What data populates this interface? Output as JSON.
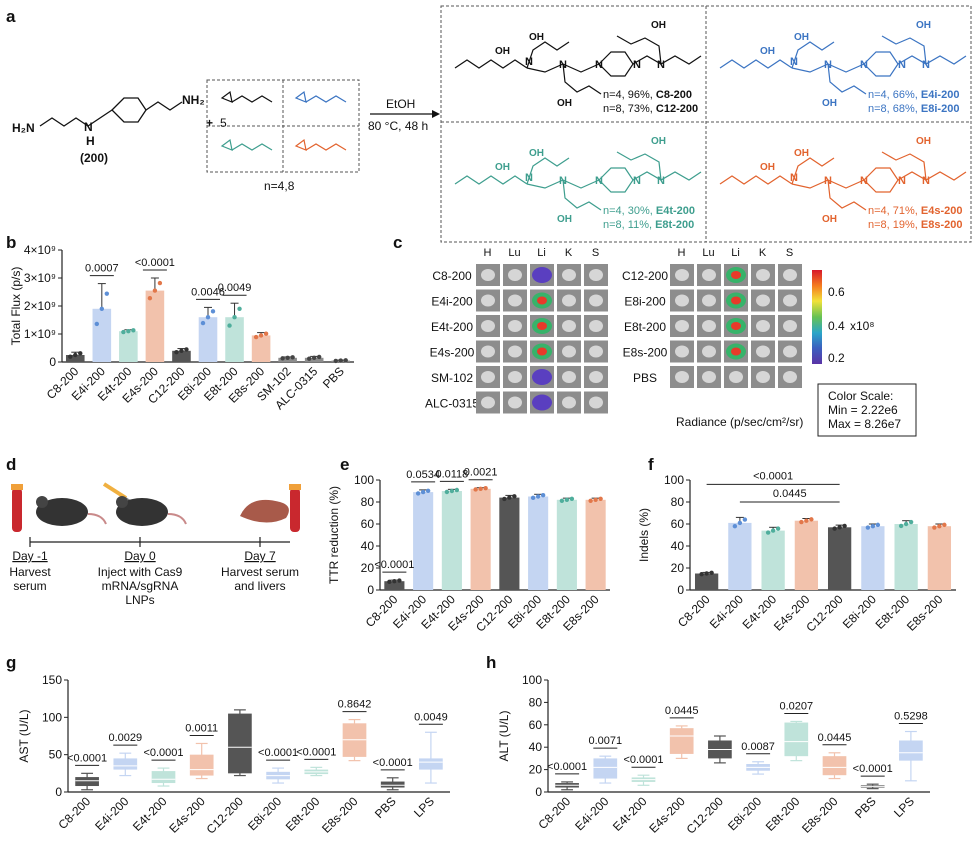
{
  "panel_labels": {
    "a": "a",
    "b": "b",
    "c": "c",
    "d": "d",
    "e": "e",
    "f": "f",
    "g": "g",
    "h": "h"
  },
  "scheme": {
    "amine_label": "(200)",
    "amine_groups": [
      "H₂N",
      "N",
      "NH₂",
      "H"
    ],
    "plus": "+",
    "equiv": "5",
    "n_values": "n=4,8",
    "cond_reagent": "EtOH",
    "cond_temp_time": "80 °C, 48 h",
    "products": [
      {
        "line1": "n=4, 96%,",
        "name1": "C8-200",
        "line2": "n=8, 73%,",
        "name2": "C12-200",
        "color": "#111111"
      },
      {
        "line1": "n=4, 66%,",
        "name1": "E4i-200",
        "line2": "n=8, 68%,",
        "name2": "E8i-200",
        "color": "#3b74c2"
      },
      {
        "line1": "n=4, 30%,",
        "name1": "E4t-200",
        "line2": "n=8, 11%,",
        "name2": "E8t-200",
        "color": "#3e9e8e"
      },
      {
        "line1": "n=4, 71%,",
        "name1": "E4s-200",
        "line2": "n=8, 19%,",
        "name2": "E8s-200",
        "color": "#e2632e"
      }
    ]
  },
  "panel_c": {
    "organs": [
      "H",
      "Lu",
      "Li",
      "K",
      "S"
    ],
    "left_rows": [
      "C8-200",
      "E4i-200",
      "E4t-200",
      "E4s-200",
      "SM-102",
      "ALC-0315"
    ],
    "right_rows": [
      "C12-200",
      "E8i-200",
      "E8t-200",
      "E8s-200",
      "PBS"
    ],
    "colorbar_ticks": [
      "0.6",
      "0.4",
      "0.2"
    ],
    "colorbar_unit": "x10⁸",
    "radiance_label": "Radiance (p/sec/cm²/sr)",
    "scale_box": [
      "Color Scale:",
      "Min = 2.22e6",
      "Max = 8.26e7"
    ]
  },
  "panel_d": {
    "steps": [
      {
        "day": "Day -1",
        "desc": [
          "Harvest",
          "serum"
        ]
      },
      {
        "day": "Day 0",
        "desc": [
          "Inject with Cas9",
          "mRNA/sgRNA",
          "LNPs"
        ]
      },
      {
        "day": "Day 7",
        "desc": [
          "Harvest serum",
          "and livers"
        ]
      }
    ]
  },
  "colors": {
    "C8": "#555555",
    "E4i": "#c4d5f2",
    "E4t": "#bfe3da",
    "E4s": "#f2c2ac",
    "C12": "#555555",
    "E8i": "#c4d5f2",
    "E8t": "#bfe3da",
    "E8s": "#f2c2ac",
    "grey": "#8c8c8c"
  },
  "chart_data": [
    {
      "id": "b",
      "type": "bar",
      "ylabel": "Total Flux (p/s)",
      "yticks": [
        "0",
        "1×10⁹",
        "2×10⁹",
        "3×10⁹",
        "4×10⁹"
      ],
      "ylim": [
        0,
        4
      ],
      "categories": [
        "C8-200",
        "E4i-200",
        "E4t-200",
        "E4s-200",
        "C12-200",
        "E8i-200",
        "E8t-200",
        "E8s-200",
        "SM-102",
        "ALC-0315",
        "PBS"
      ],
      "values": [
        0.25,
        1.9,
        1.1,
        2.55,
        0.4,
        1.6,
        1.6,
        0.95,
        0.15,
        0.15,
        0.05
      ],
      "errors": [
        0.1,
        0.9,
        0.05,
        0.45,
        0.08,
        0.35,
        0.5,
        0.1,
        0.03,
        0.05,
        0.02
      ],
      "color_keys": [
        "C8",
        "E4i",
        "E4t",
        "E4s",
        "C12",
        "E8i",
        "E8t",
        "E8s",
        "grey",
        "grey",
        "grey"
      ],
      "pvalues": [
        {
          "i": 1,
          "text": "0.0007"
        },
        {
          "i": 3,
          "text": "<0.0001"
        },
        {
          "i": 5,
          "text": "0.0046"
        },
        {
          "i": 6,
          "text": "0.0049"
        }
      ]
    },
    {
      "id": "e",
      "type": "bar",
      "ylabel": "TTR reduction (%)",
      "yticks": [
        "0",
        "20",
        "40",
        "60",
        "80",
        "100"
      ],
      "ylim": [
        0,
        100
      ],
      "categories": [
        "C8-200",
        "E4i-200",
        "E4t-200",
        "E4s-200",
        "C12-200",
        "E8i-200",
        "E8t-200",
        "E8s-200"
      ],
      "values": [
        8,
        89,
        90,
        92,
        84,
        85,
        82,
        82
      ],
      "errors": [
        1,
        2,
        1.5,
        1,
        2,
        2,
        1.5,
        1.5
      ],
      "color_keys": [
        "C8",
        "E4i",
        "E4t",
        "E4s",
        "C12",
        "E8i",
        "E8t",
        "E8s"
      ],
      "pvalues": [
        {
          "i": 0,
          "text": "<0.0001"
        },
        {
          "i": 1,
          "text": "0.0534"
        },
        {
          "i": 2,
          "text": "0.0118"
        },
        {
          "i": 3,
          "text": "0.0021"
        }
      ]
    },
    {
      "id": "f",
      "type": "bar",
      "ylabel": "Indels (%)",
      "yticks": [
        "0",
        "20",
        "40",
        "60",
        "80",
        "100"
      ],
      "ylim": [
        0,
        100
      ],
      "categories": [
        "C8-200",
        "E4i-200",
        "E4t-200",
        "E4s-200",
        "C12-200",
        "E8i-200",
        "E8t-200",
        "E8s-200"
      ],
      "values": [
        15,
        61,
        54,
        63,
        57,
        58,
        60,
        58
      ],
      "errors": [
        1,
        5,
        3,
        2,
        2,
        2,
        3,
        2
      ],
      "color_keys": [
        "C8",
        "E4i",
        "E4t",
        "E4s",
        "C12",
        "E8i",
        "E8t",
        "E8s"
      ],
      "brackets": [
        {
          "from": 0,
          "to": 4,
          "text": "<0.0001",
          "y": 96
        },
        {
          "from": 1,
          "to": 4,
          "text": "0.0445",
          "y": 80
        }
      ]
    },
    {
      "id": "g",
      "type": "box",
      "ylabel": "AST (U/L)",
      "yticks": [
        "0",
        "50",
        "100",
        "150"
      ],
      "ylim": [
        0,
        150
      ],
      "categories": [
        "C8-200",
        "E4i-200",
        "E4t-200",
        "E4s-200",
        "C12-200",
        "E8i-200",
        "E8t-200",
        "E8s-200",
        "PBS",
        "LPS"
      ],
      "boxes": [
        [
          3,
          8,
          15,
          20,
          25
        ],
        [
          22,
          30,
          35,
          45,
          52
        ],
        [
          8,
          12,
          17,
          28,
          32
        ],
        [
          18,
          22,
          30,
          50,
          65
        ],
        [
          22,
          25,
          60,
          105,
          110
        ],
        [
          12,
          17,
          22,
          27,
          32
        ],
        [
          22,
          24,
          27,
          30,
          33
        ],
        [
          42,
          47,
          70,
          92,
          97
        ],
        [
          3,
          6,
          9,
          14,
          19
        ],
        [
          12,
          30,
          40,
          45,
          80
        ]
      ],
      "color_keys": [
        "C8",
        "E4i",
        "E4t",
        "E4s",
        "C12",
        "E8i",
        "E8t",
        "E8s",
        "C8",
        "E4i"
      ],
      "pvalues": [
        {
          "i": 0,
          "text": "<0.0001"
        },
        {
          "i": 1,
          "text": "0.0029"
        },
        {
          "i": 2,
          "text": "<0.0001"
        },
        {
          "i": 3,
          "text": "0.0011"
        },
        {
          "i": 5,
          "text": "<0.0001"
        },
        {
          "i": 6,
          "text": "<0.0001"
        },
        {
          "i": 7,
          "text": "0.8642"
        },
        {
          "i": 8,
          "text": "<0.0001"
        },
        {
          "i": 9,
          "text": "0.0049"
        }
      ]
    },
    {
      "id": "h",
      "type": "box",
      "ylabel": "ALT (U/L)",
      "yticks": [
        "0",
        "20",
        "40",
        "60",
        "80",
        "100"
      ],
      "ylim": [
        0,
        100
      ],
      "categories": [
        "C8-200",
        "E4i-200",
        "E4t-200",
        "E4s-200",
        "C12-200",
        "E8i-200",
        "E8t-200",
        "E8s-200",
        "PBS",
        "LPS"
      ],
      "boxes": [
        [
          2,
          4,
          6,
          8,
          9
        ],
        [
          8,
          12,
          22,
          30,
          32
        ],
        [
          6,
          9,
          11,
          13,
          15
        ],
        [
          30,
          34,
          50,
          57,
          59
        ],
        [
          26,
          30,
          38,
          46,
          50
        ],
        [
          16,
          19,
          22,
          25,
          27
        ],
        [
          28,
          32,
          45,
          62,
          63
        ],
        [
          12,
          15,
          22,
          32,
          35
        ],
        [
          3,
          4,
          5,
          6,
          7
        ],
        [
          10,
          28,
          35,
          46,
          54
        ]
      ],
      "color_keys": [
        "C8",
        "E4i",
        "E4t",
        "E4s",
        "C12",
        "E8i",
        "E8t",
        "E8s",
        "C8",
        "E4i"
      ],
      "pvalues": [
        {
          "i": 0,
          "text": "<0.0001"
        },
        {
          "i": 1,
          "text": "0.0071"
        },
        {
          "i": 2,
          "text": "<0.0001"
        },
        {
          "i": 3,
          "text": "0.0445"
        },
        {
          "i": 5,
          "text": "0.0087"
        },
        {
          "i": 6,
          "text": "0.0207"
        },
        {
          "i": 7,
          "text": "0.0445"
        },
        {
          "i": 8,
          "text": "<0.0001"
        },
        {
          "i": 9,
          "text": "0.5298"
        }
      ]
    }
  ]
}
